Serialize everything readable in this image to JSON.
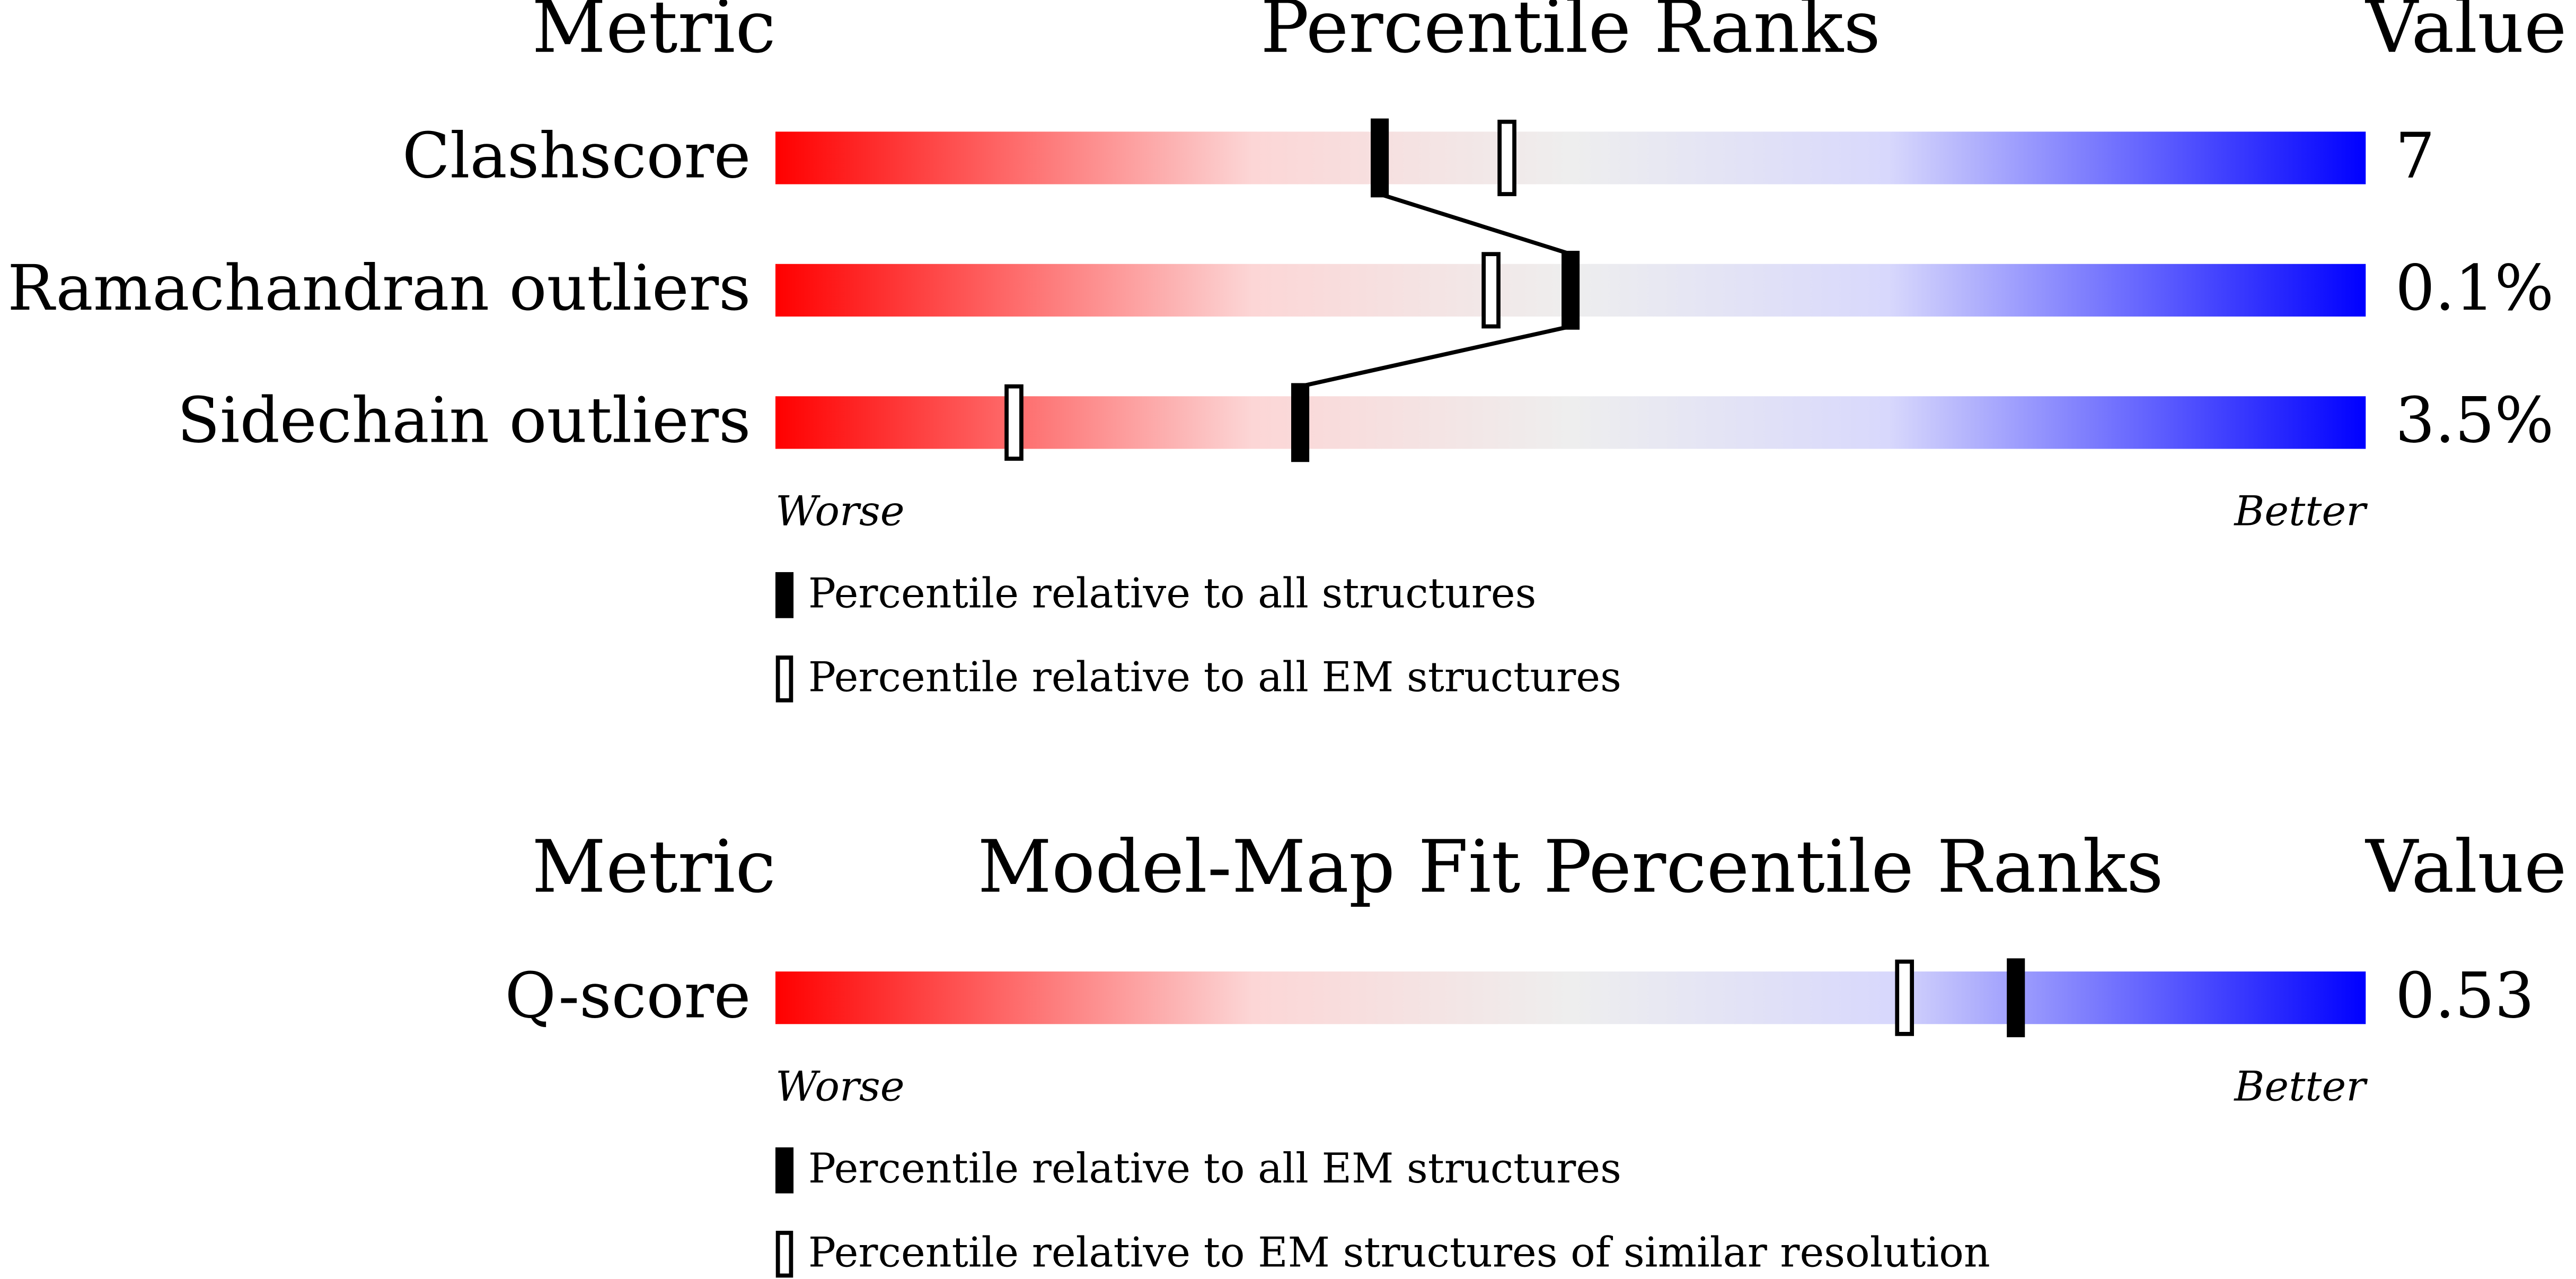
{
  "sections": [
    {
      "header": {
        "metric": "Metric",
        "title": "Percentile Ranks",
        "value": "Value"
      },
      "rows": [
        {
          "metric": "Clashscore",
          "value": "7",
          "percentile_filled": 38,
          "percentile_open": 46
        },
        {
          "metric": "Ramachandran outliers",
          "value": "0.1%",
          "percentile_filled": 50,
          "percentile_open": 45
        },
        {
          "metric": "Sidechain outliers",
          "value": "3.5%",
          "percentile_filled": 33,
          "percentile_open": 15
        }
      ],
      "worse": "Worse",
      "better": "Better",
      "legend": {
        "filled": "Percentile relative to all structures",
        "open": "Percentile relative to all EM structures"
      }
    },
    {
      "header": {
        "metric": "Metric",
        "title": "Model-Map Fit Percentile Ranks",
        "value": "Value"
      },
      "rows": [
        {
          "metric": "Q-score",
          "value": "0.53",
          "percentile_filled": 78,
          "percentile_open": 71
        }
      ],
      "worse": "Worse",
      "better": "Better",
      "legend": {
        "filled": "Percentile relative to all EM structures",
        "open": "Percentile relative to EM structures of similar resolution"
      }
    }
  ]
}
